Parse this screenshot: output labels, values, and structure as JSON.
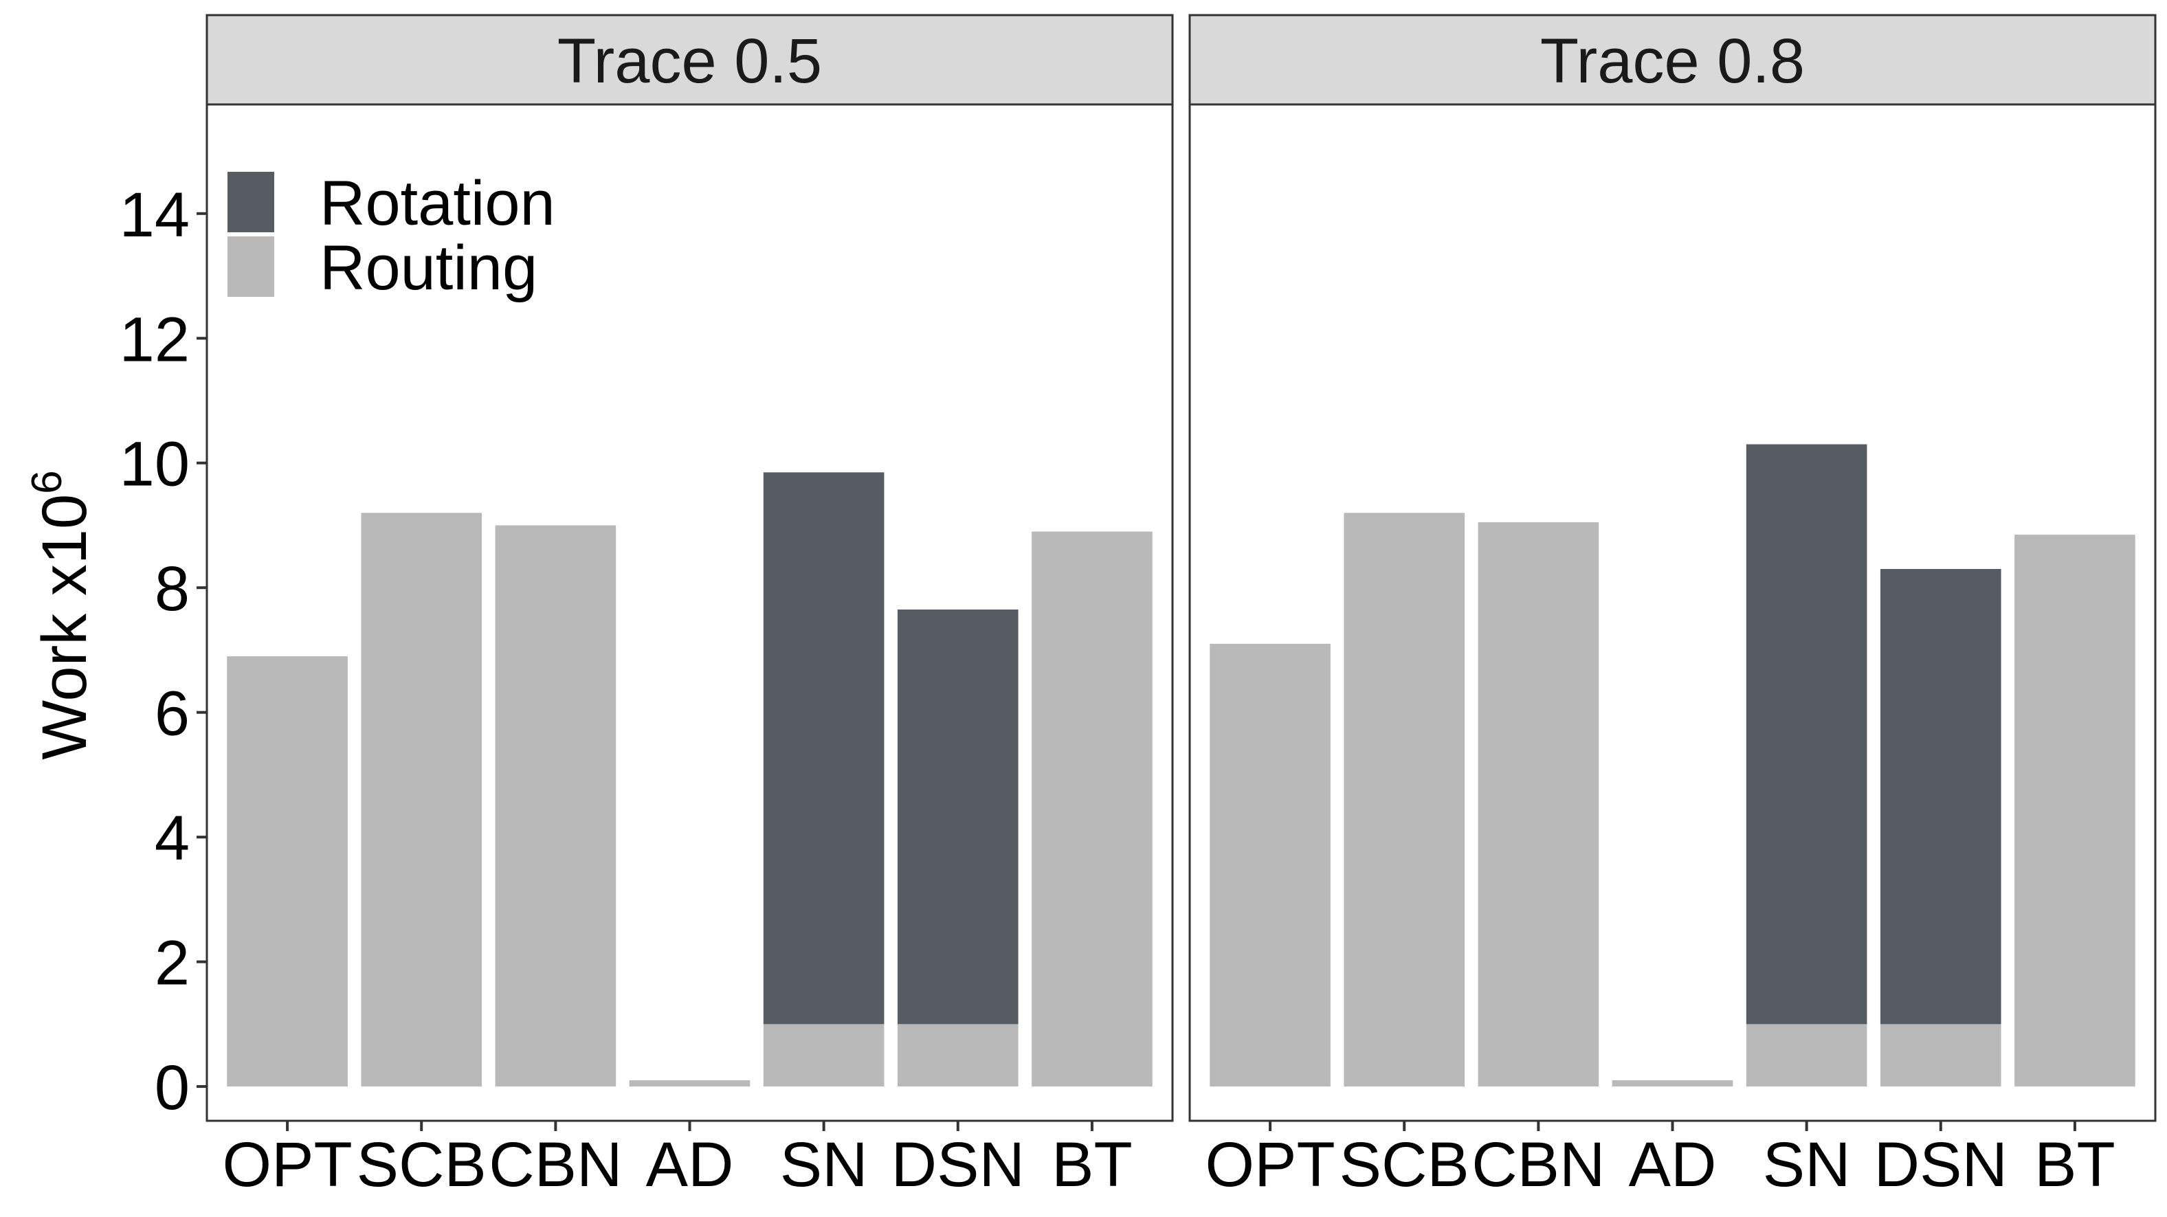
{
  "chart_data": {
    "type": "bar",
    "stacked": true,
    "categories": [
      "OPT",
      "SCB",
      "CBN",
      "AD",
      "SN",
      "DSN",
      "BT"
    ],
    "ylabel": "Work x10",
    "ylabel_exponent": "6",
    "ylim": [
      -0.55,
      15.75
    ],
    "yticks": [
      "0",
      "2",
      "4",
      "6",
      "8",
      "10",
      "12",
      "14"
    ],
    "grid": false,
    "legend": {
      "position": "top-left",
      "entries": [
        {
          "name": "Rotation",
          "color": "#555d63"
        },
        {
          "name": "Routing",
          "color": "#b9b9b9"
        }
      ]
    },
    "panels": [
      {
        "title": "Trace 0.5",
        "series": [
          {
            "name": "Routing",
            "values": [
              6.9,
              9.2,
              9.0,
              0.1,
              1.0,
              1.0,
              8.9
            ]
          },
          {
            "name": "Rotation",
            "values": [
              0,
              0,
              0,
              0,
              8.85,
              6.65,
              0
            ]
          }
        ]
      },
      {
        "title": "Trace 0.8",
        "series": [
          {
            "name": "Routing",
            "values": [
              7.1,
              9.2,
              9.05,
              0.1,
              1.0,
              1.0,
              8.85
            ]
          },
          {
            "name": "Rotation",
            "values": [
              0,
              0,
              0,
              0,
              9.3,
              7.3,
              0
            ]
          }
        ]
      }
    ]
  }
}
